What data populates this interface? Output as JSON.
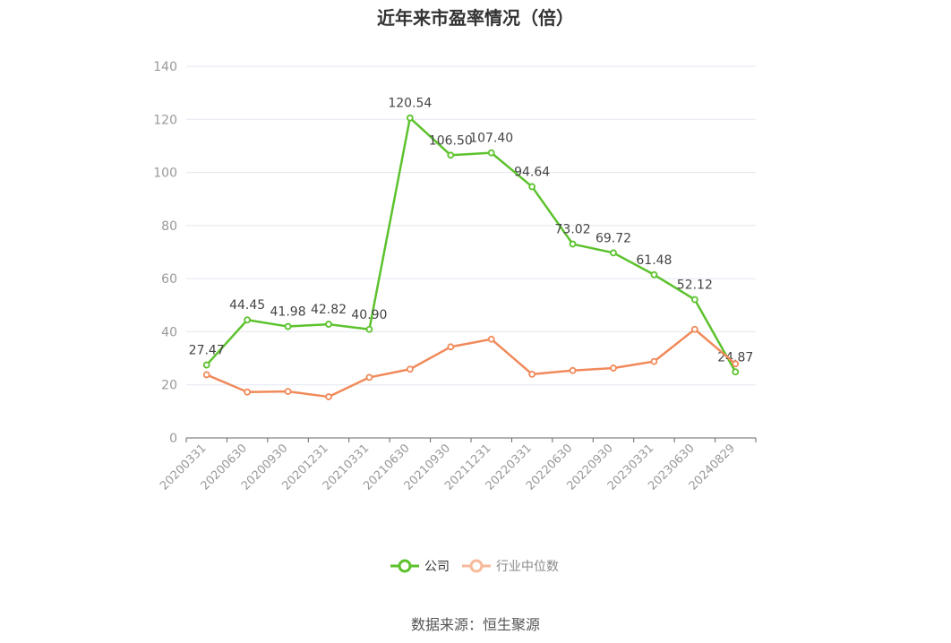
{
  "chart_data": {
    "type": "line",
    "title": "近年来市盈率情况（倍）",
    "categories": [
      "20200331",
      "20200630",
      "20200930",
      "20201231",
      "20210331",
      "20210630",
      "20210930",
      "20211231",
      "20220331",
      "20220630",
      "20220930",
      "20230331",
      "20230630",
      "20240829"
    ],
    "ylim": [
      0,
      140
    ],
    "yticks": [
      0,
      20,
      40,
      60,
      80,
      100,
      120,
      140
    ],
    "grid": true,
    "legend_position": "bottom",
    "series": [
      {
        "name": "公司",
        "color": "#5cc22d",
        "values": [
          27.47,
          44.45,
          41.98,
          42.82,
          40.9,
          120.54,
          106.5,
          107.4,
          94.64,
          73.02,
          69.72,
          61.48,
          52.12,
          24.87
        ],
        "labels": [
          "27.47",
          "44.45",
          "41.98",
          "42.82",
          "40.90",
          "120.54",
          "106.50",
          "107.40",
          "94.64",
          "73.02",
          "69.72",
          "61.48",
          "52.12",
          "24.87"
        ]
      },
      {
        "name": "行业中位数",
        "color": "#f08a5a",
        "values": [
          23.8,
          17.3,
          17.5,
          15.5,
          22.8,
          25.9,
          34.3,
          37.2,
          24.0,
          25.4,
          26.3,
          28.8,
          40.9,
          27.9
        ]
      }
    ]
  },
  "source": "数据来源：恒生聚源"
}
